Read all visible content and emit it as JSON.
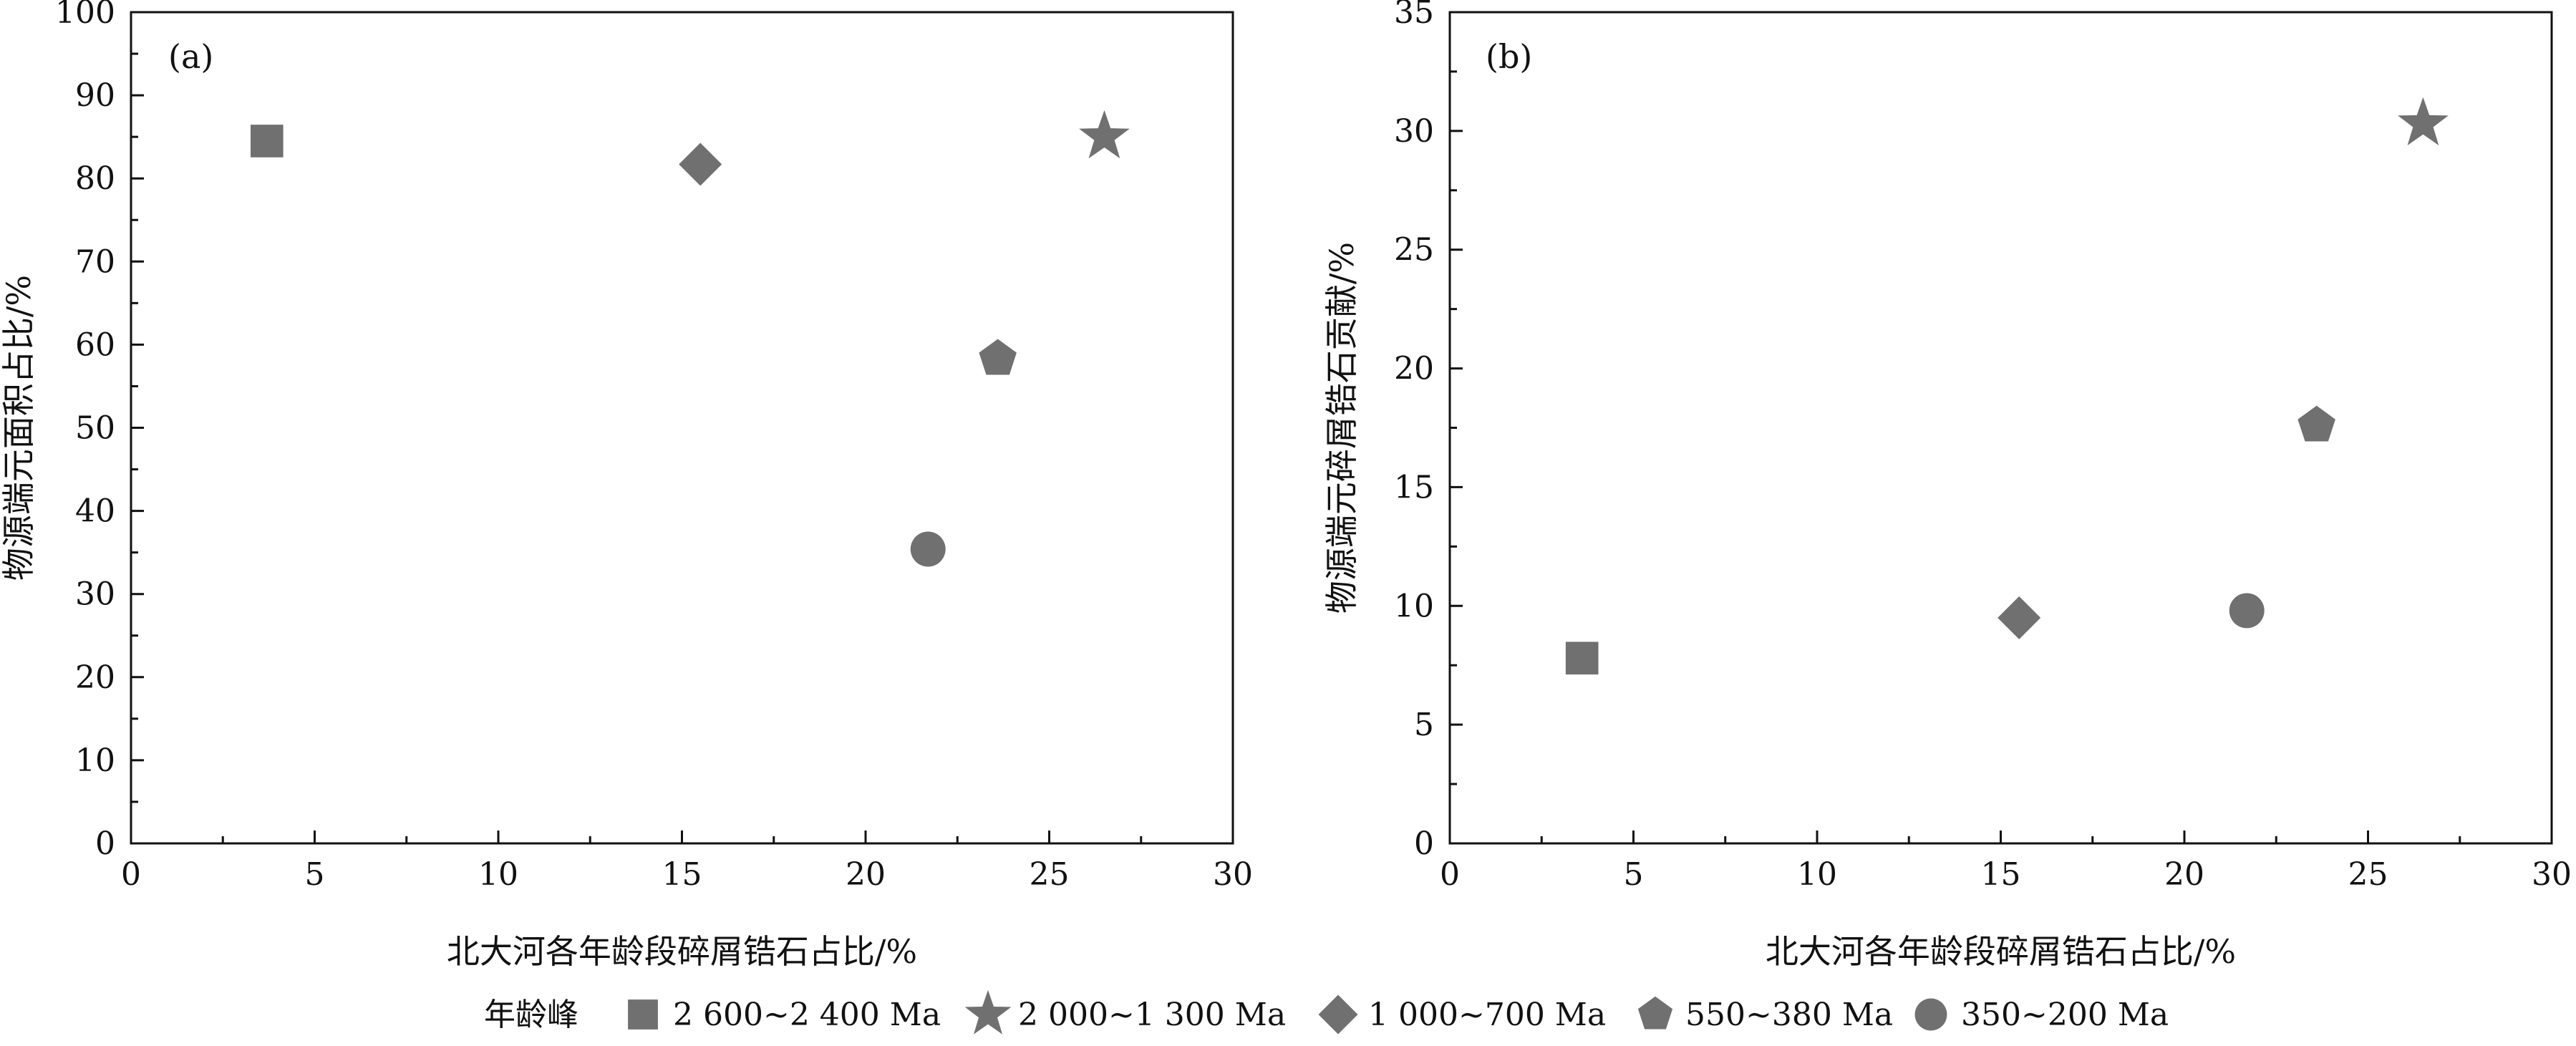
{
  "chart_data": [
    {
      "type": "scatter",
      "panel_label": "(a)",
      "xlabel": "北大河各年龄段碎屑锆石占比/%",
      "ylabel": "物源端元面积占比/%",
      "xlim": [
        0,
        30
      ],
      "ylim": [
        0,
        100
      ],
      "x_ticks": [
        0,
        5,
        10,
        15,
        20,
        25,
        30
      ],
      "y_ticks": [
        0,
        10,
        20,
        30,
        40,
        50,
        60,
        70,
        80,
        90,
        100
      ],
      "points": [
        {
          "series": "2 600~2 400 Ma",
          "x": 3.7,
          "y": 84.5
        },
        {
          "series": "2 000~1 300 Ma",
          "x": 26.5,
          "y": 85
        },
        {
          "series": "1 000~700 Ma",
          "x": 15.5,
          "y": 81.7
        },
        {
          "series": "550~380 Ma",
          "x": 23.6,
          "y": 58.3
        },
        {
          "series": "350~200 Ma",
          "x": 21.7,
          "y": 35.4
        }
      ]
    },
    {
      "type": "scatter",
      "panel_label": "(b)",
      "xlabel": "北大河各年龄段碎屑锆石占比/%",
      "ylabel": "物源端元碎屑锆石贡献/%",
      "xlim": [
        0,
        30
      ],
      "ylim": [
        0,
        35
      ],
      "x_ticks": [
        0,
        5,
        10,
        15,
        20,
        25,
        30
      ],
      "y_ticks": [
        0,
        5,
        10,
        15,
        20,
        25,
        30,
        35
      ],
      "points": [
        {
          "series": "2 600~2 400 Ma",
          "x": 3.6,
          "y": 7.8
        },
        {
          "series": "2 000~1 300 Ma",
          "x": 26.5,
          "y": 30.3
        },
        {
          "series": "1 000~700 Ma",
          "x": 15.5,
          "y": 9.5
        },
        {
          "series": "550~380 Ma",
          "x": 23.6,
          "y": 17.6
        },
        {
          "series": "350~200 Ma",
          "x": 21.7,
          "y": 9.8
        }
      ]
    }
  ],
  "legend": {
    "title": "年龄峰",
    "placement": "bottom",
    "items": [
      {
        "name": "2 600~2 400 Ma",
        "marker": "square"
      },
      {
        "name": "2 000~1 300 Ma",
        "marker": "star"
      },
      {
        "name": "1 000~700 Ma",
        "marker": "diamond"
      },
      {
        "name": "550~380 Ma",
        "marker": "pentagon"
      },
      {
        "name": "350~200 Ma",
        "marker": "circle"
      }
    ]
  },
  "colors": {
    "marker": "#707070",
    "axis": "#111111"
  }
}
